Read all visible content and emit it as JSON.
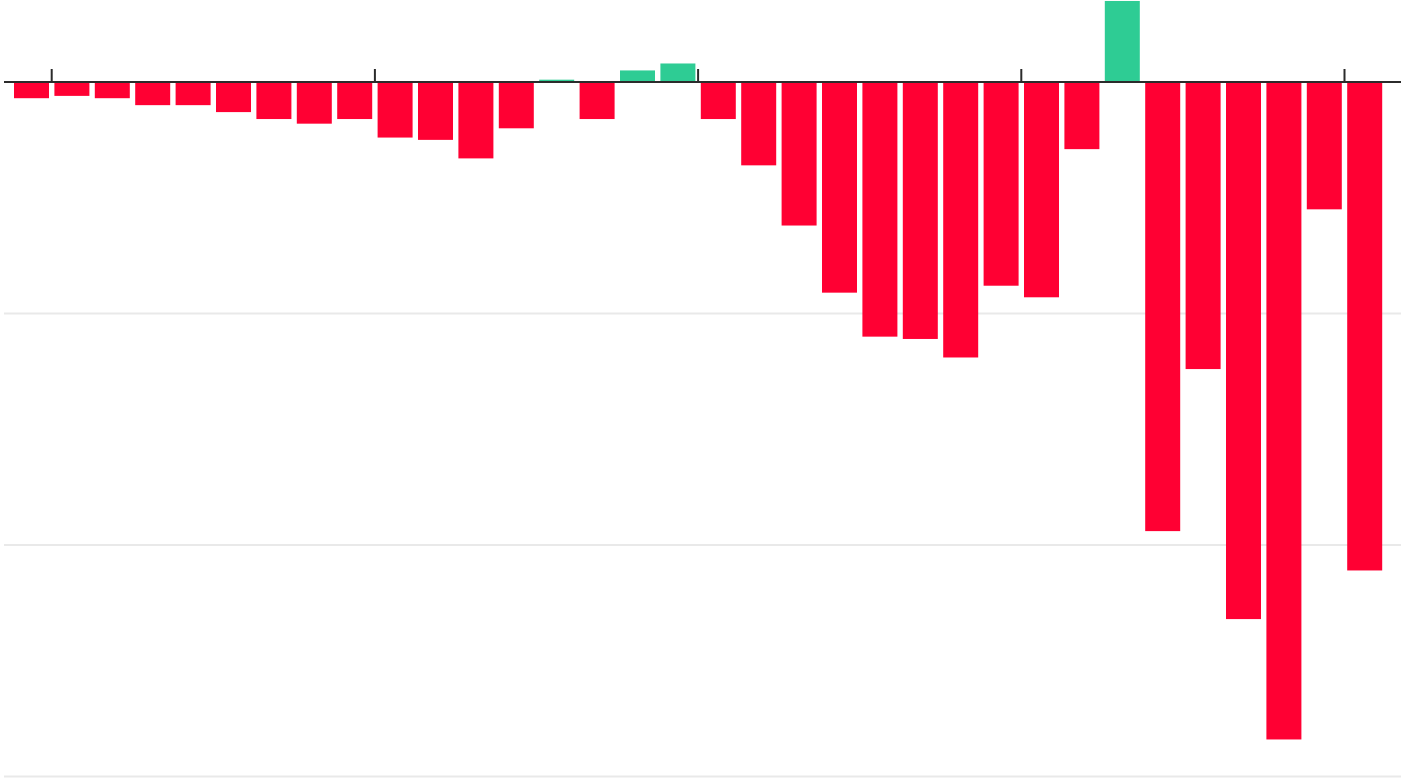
{
  "chart_data": {
    "type": "bar",
    "title": "",
    "xlabel": "",
    "ylabel": "",
    "ylim": [
      -300,
      35
    ],
    "gridlines": [
      -100,
      -200,
      -300
    ],
    "grid": true,
    "legend": "none",
    "values": [
      -7,
      -6,
      -7,
      -10,
      -10,
      -13,
      -16,
      -18,
      -16,
      -24,
      -25,
      -33,
      -20,
      1,
      -16,
      5,
      8,
      -16,
      -36,
      -62,
      -91,
      -110,
      -111,
      -119,
      -88,
      -93,
      -29,
      35,
      -194,
      -124,
      -232,
      -284,
      -55,
      -211
    ],
    "major_tick_positions": [
      1,
      9,
      17,
      25,
      33
    ],
    "colors": {
      "positive": "#2ecc94",
      "negative": "#ff0033",
      "axis": "#2b2b2b",
      "grid": "#e9e9e9",
      "background": "#ffffff"
    }
  }
}
